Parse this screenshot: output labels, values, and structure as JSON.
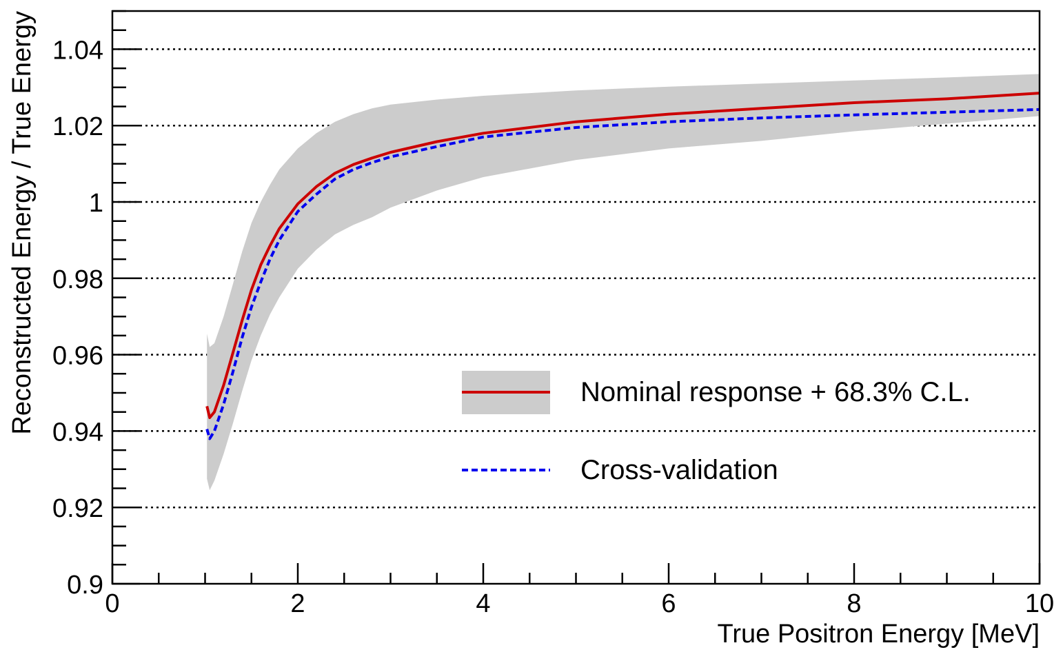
{
  "chart_data": {
    "type": "line",
    "xlabel": "True Positron Energy [MeV]",
    "ylabel": "Reconstructed Energy / True Energy",
    "xlim": [
      0,
      10
    ],
    "ylim": [
      0.9,
      1.05
    ],
    "xticks": [
      0,
      2,
      4,
      6,
      8,
      10
    ],
    "xtick_labels": [
      "0",
      "2",
      "4",
      "6",
      "8",
      "10"
    ],
    "yticks": [
      0.9,
      0.92,
      0.94,
      0.96,
      0.98,
      1.0,
      1.02,
      1.04
    ],
    "ytick_labels": [
      "0.9",
      "0.92",
      "0.94",
      "0.96",
      "0.98",
      "1",
      "1.02",
      "1.04"
    ],
    "grid": "horizontal dotted",
    "legend_placement": "bottom-right",
    "series": [
      {
        "name": "Nominal response + 68.3% C.L.",
        "color": "#cc0000",
        "style": "solid",
        "x": [
          1.02,
          1.05,
          1.1,
          1.2,
          1.3,
          1.4,
          1.5,
          1.6,
          1.7,
          1.8,
          2.0,
          2.2,
          2.4,
          2.6,
          2.8,
          3.0,
          3.5,
          4.0,
          5.0,
          6.0,
          7.0,
          8.0,
          9.0,
          10.0
        ],
        "values": [
          0.9465,
          0.9435,
          0.945,
          0.952,
          0.9605,
          0.969,
          0.977,
          0.9835,
          0.9885,
          0.993,
          0.9995,
          1.004,
          1.0075,
          1.0098,
          1.0115,
          1.013,
          1.0158,
          1.018,
          1.021,
          1.023,
          1.0245,
          1.026,
          1.027,
          1.0285
        ],
        "band_upper": [
          0.9655,
          0.962,
          0.963,
          0.97,
          0.9785,
          0.987,
          0.9945,
          1.0,
          1.0045,
          1.0085,
          1.014,
          1.018,
          1.021,
          1.023,
          1.0245,
          1.0255,
          1.0268,
          1.0278,
          1.0292,
          1.0302,
          1.031,
          1.0318,
          1.0326,
          1.0335
        ],
        "band_lower": [
          0.9275,
          0.9245,
          0.927,
          0.934,
          0.942,
          0.9505,
          0.9585,
          0.965,
          0.9705,
          0.975,
          0.9825,
          0.9875,
          0.9915,
          0.994,
          0.996,
          0.9985,
          1.003,
          1.0065,
          1.011,
          1.014,
          1.016,
          1.0185,
          1.0205,
          1.0225
        ]
      },
      {
        "name": "Cross-validation",
        "color": "#0000ee",
        "style": "dashed",
        "x": [
          1.02,
          1.05,
          1.1,
          1.2,
          1.3,
          1.4,
          1.5,
          1.6,
          1.7,
          1.8,
          2.0,
          2.2,
          2.4,
          2.6,
          2.8,
          3.0,
          3.5,
          4.0,
          5.0,
          6.0,
          7.0,
          8.0,
          9.0,
          10.0
        ],
        "values": [
          0.9405,
          0.938,
          0.94,
          0.947,
          0.9555,
          0.9645,
          0.9725,
          0.979,
          0.985,
          0.99,
          0.9975,
          1.002,
          1.006,
          1.0085,
          1.0103,
          1.0118,
          1.0145,
          1.017,
          1.0195,
          1.021,
          1.022,
          1.0228,
          1.0235,
          1.0242
        ]
      }
    ]
  }
}
